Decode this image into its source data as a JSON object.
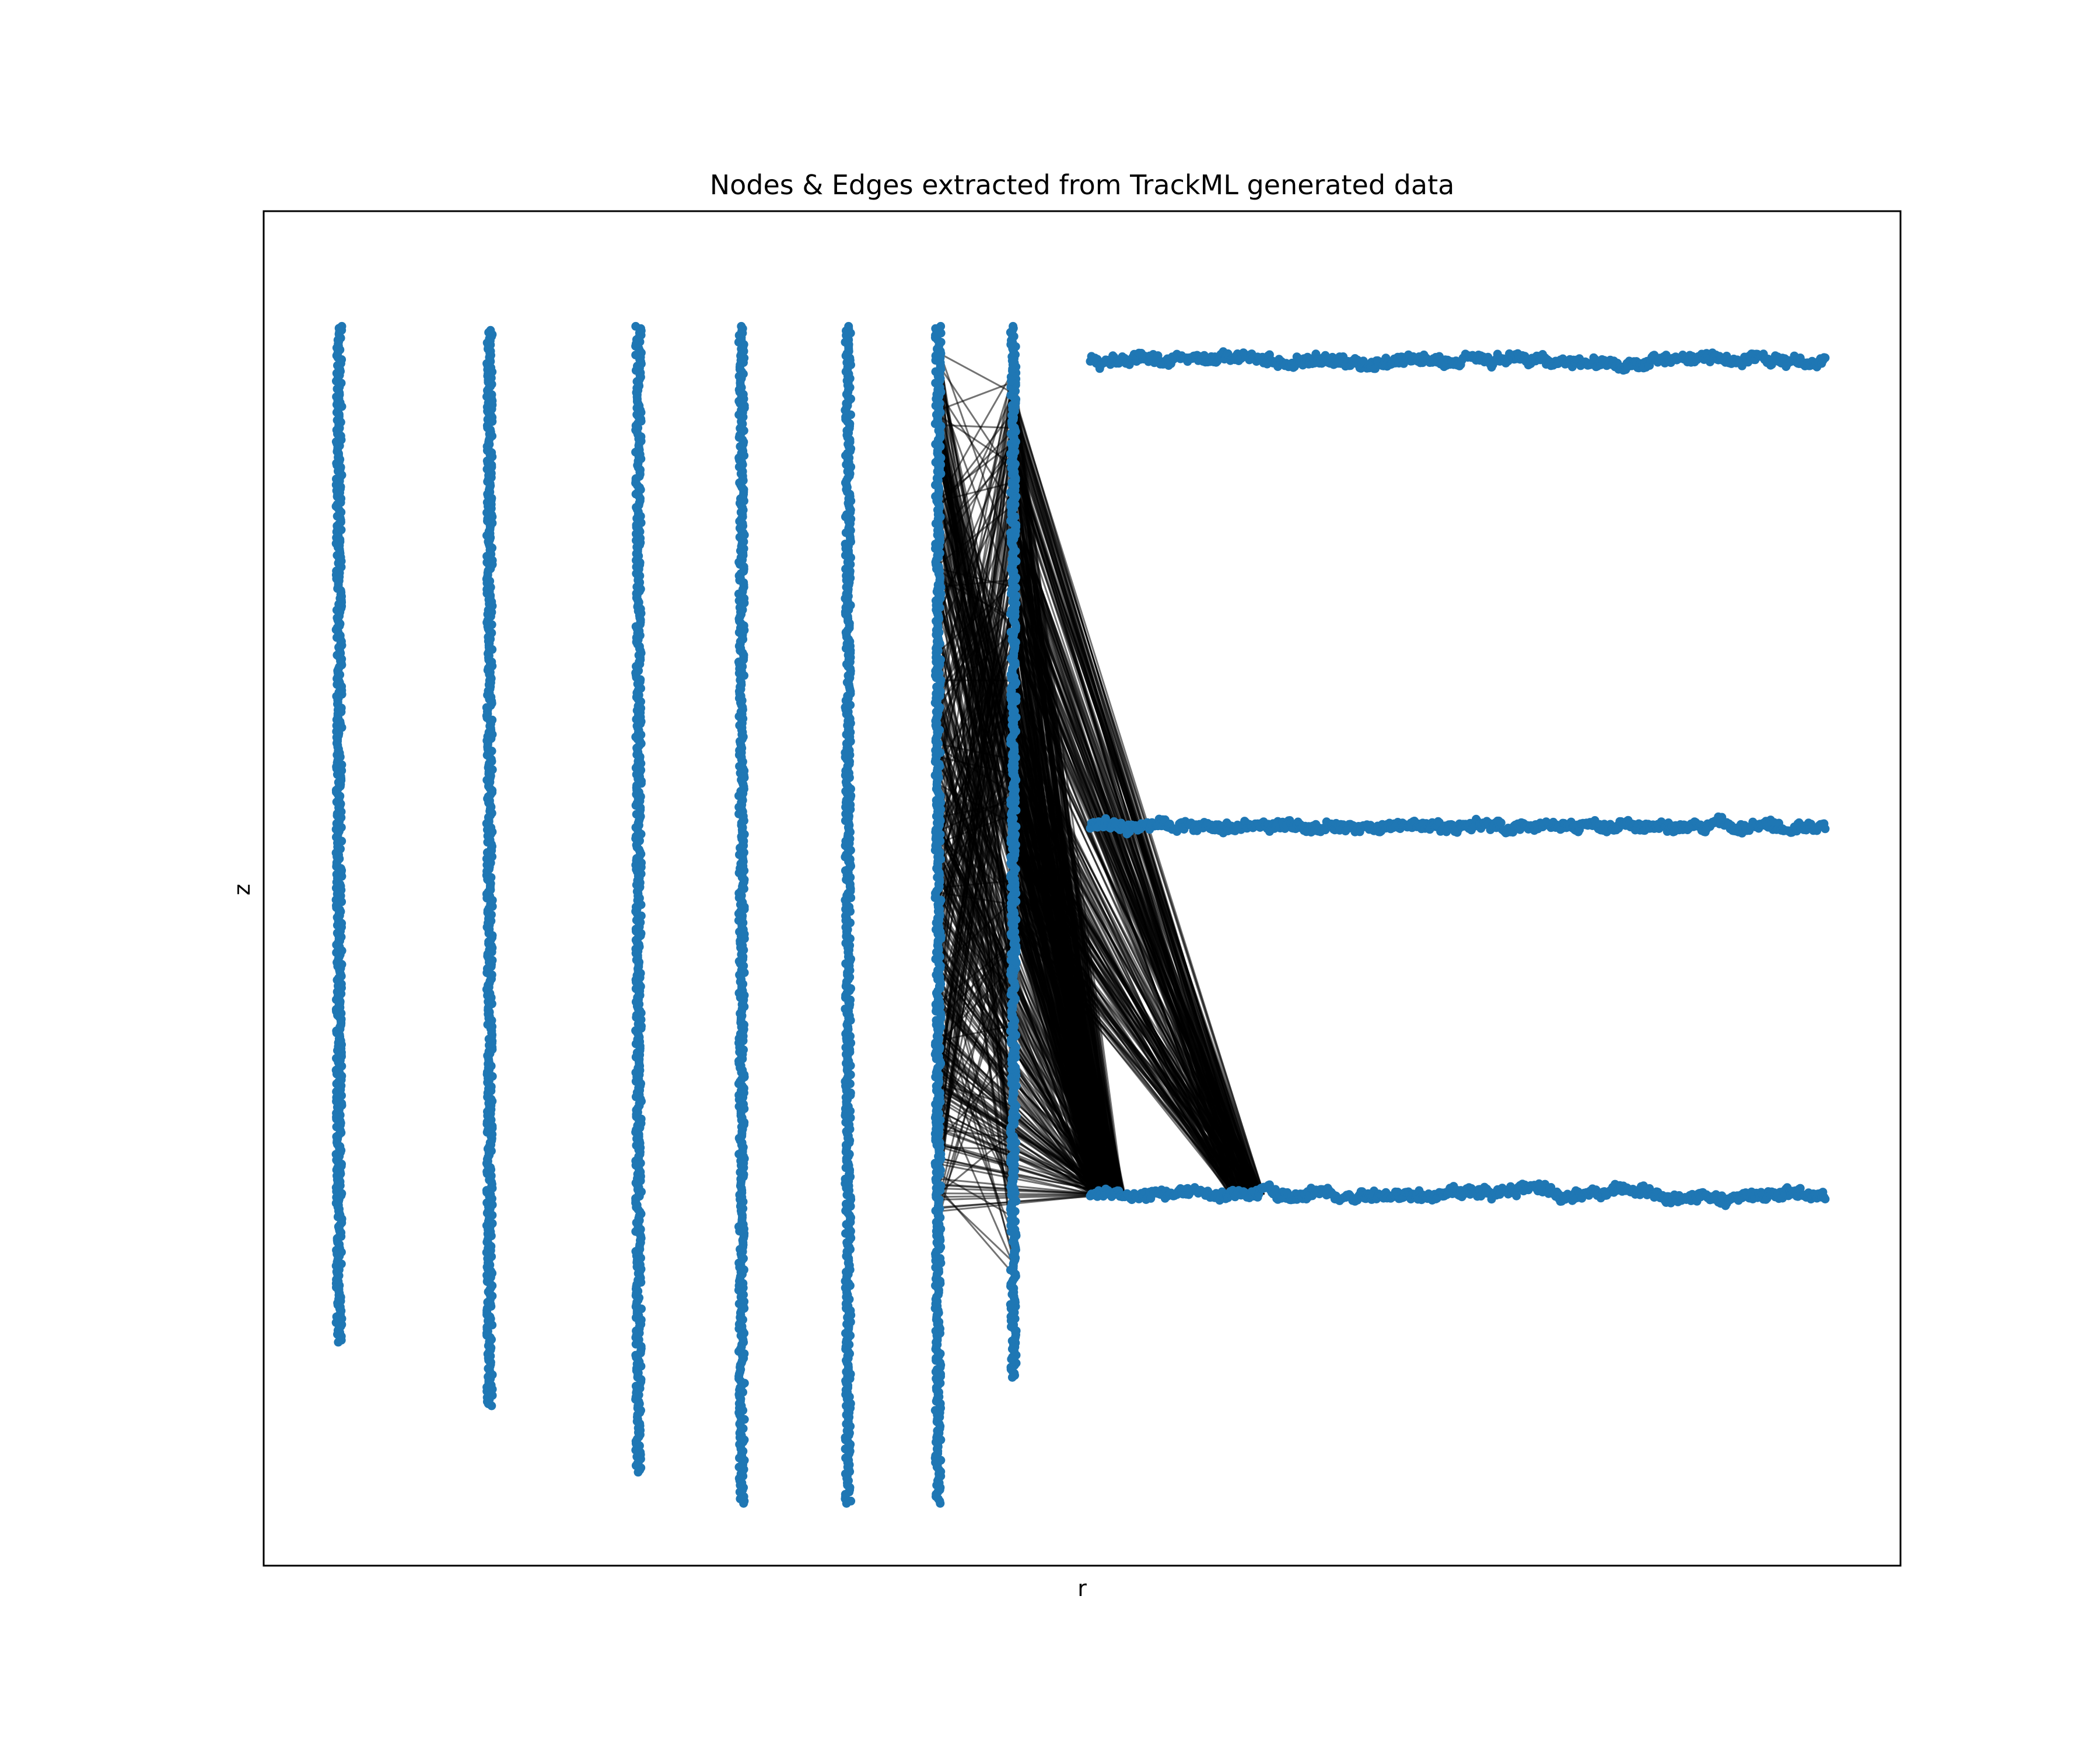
{
  "chart_data": {
    "type": "scatter",
    "title": "Nodes & Edges extracted from TrackML generated data",
    "xlabel": "r",
    "ylabel": "z",
    "xlim": [
      0,
      1000
    ],
    "ylim": [
      0,
      1000
    ],
    "xticks": [],
    "yticks": [],
    "grid": false,
    "legend": "none",
    "colors": {
      "nodes": "#1f77b4",
      "edges": "#000000",
      "frame": "#000000"
    },
    "series": [
      {
        "kind": "nodes",
        "groups": [
          {
            "orientation": "vertical",
            "r": 46,
            "z_from": 165,
            "z_to": 915
          },
          {
            "orientation": "vertical",
            "r": 138,
            "z_from": 118,
            "z_to": 912
          },
          {
            "orientation": "vertical",
            "r": 229,
            "z_from": 69,
            "z_to": 915
          },
          {
            "orientation": "vertical",
            "r": 292,
            "z_from": 46,
            "z_to": 915
          },
          {
            "orientation": "vertical",
            "r": 357,
            "z_from": 46,
            "z_to": 915
          },
          {
            "orientation": "vertical",
            "r": 412,
            "z_from": 46,
            "z_to": 915
          },
          {
            "orientation": "vertical",
            "r": 458,
            "z_from": 139,
            "z_to": 915
          },
          {
            "orientation": "horizontal",
            "z": 890,
            "r_from": 505,
            "r_to": 954
          },
          {
            "orientation": "horizontal",
            "z": 546,
            "r_from": 505,
            "r_to": 954
          },
          {
            "orientation": "horizontal",
            "z": 274,
            "r_from": 505,
            "r_to": 954
          }
        ]
      },
      {
        "kind": "edges",
        "bundles": [
          {
            "from_r": 412,
            "to_r": 458,
            "from_z": [
              250,
              915
            ],
            "to_z": [
              190,
              890
            ]
          },
          {
            "from_r": 458,
            "to_r": 505,
            "from_z": [
              470,
              890
            ],
            "to_z": [
              274,
              274
            ]
          },
          {
            "from_r": 458,
            "to_r": 590,
            "from_z": [
              470,
              870
            ],
            "to_z": [
              274,
              274
            ]
          },
          {
            "from_r": 412,
            "to_r": 505,
            "from_z": [
              250,
              890
            ],
            "to_z": [
              274,
              274
            ]
          }
        ]
      }
    ]
  }
}
